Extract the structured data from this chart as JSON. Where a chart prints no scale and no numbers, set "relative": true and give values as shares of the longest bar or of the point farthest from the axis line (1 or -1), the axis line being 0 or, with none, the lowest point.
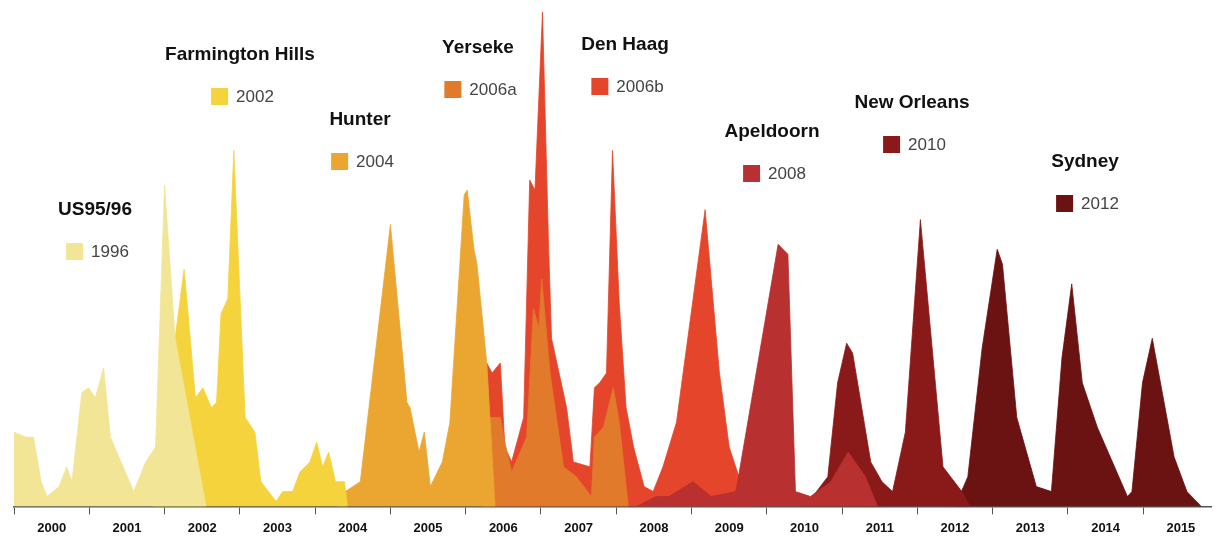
{
  "chart_data": {
    "type": "area",
    "relative": true,
    "legend": "top",
    "grid": false,
    "xlim": [
      2000,
      2015.9
    ],
    "xticks": [
      {
        "value": 2000,
        "label": null
      },
      {
        "value": 2000.5,
        "label": "2000"
      },
      {
        "value": 2001,
        "label": null
      },
      {
        "value": 2001.5,
        "label": "2001"
      },
      {
        "value": 2002,
        "label": null
      },
      {
        "value": 2002.5,
        "label": "2002"
      },
      {
        "value": 2003,
        "label": null
      },
      {
        "value": 2003.5,
        "label": "2003"
      },
      {
        "value": 2004,
        "label": null
      },
      {
        "value": 2004.5,
        "label": "2004"
      },
      {
        "value": 2005,
        "label": null
      },
      {
        "value": 2005.5,
        "label": "2005"
      },
      {
        "value": 2006,
        "label": null
      },
      {
        "value": 2006.5,
        "label": "2006"
      },
      {
        "value": 2007,
        "label": null
      },
      {
        "value": 2007.5,
        "label": "2007"
      },
      {
        "value": 2008,
        "label": null
      },
      {
        "value": 2008.5,
        "label": "2008"
      },
      {
        "value": 2009,
        "label": null
      },
      {
        "value": 2009.5,
        "label": "2009"
      },
      {
        "value": 2010,
        "label": null
      },
      {
        "value": 2010.5,
        "label": "2010"
      },
      {
        "value": 2011,
        "label": null
      },
      {
        "value": 2011.5,
        "label": "2011"
      },
      {
        "value": 2012,
        "label": null
      },
      {
        "value": 2012.5,
        "label": "2012"
      },
      {
        "value": 2013,
        "label": null
      },
      {
        "value": 2013.5,
        "label": "2013"
      },
      {
        "value": 2014,
        "label": null
      },
      {
        "value": 2014.5,
        "label": "2014"
      },
      {
        "value": 2015,
        "label": null
      },
      {
        "value": 2015.5,
        "label": "2015"
      }
    ],
    "series": [
      {
        "name": "1996",
        "color": "#f2e595",
        "x": [
          2000.0,
          2000.16,
          2000.26,
          2000.36,
          2000.44,
          2000.6,
          2000.7,
          2000.77,
          2000.9,
          2000.99,
          2001.08,
          2001.19,
          2001.28,
          2001.59,
          2001.75,
          2001.88,
          2002.0,
          2002.14,
          2002.55
        ],
        "values": [
          0.15,
          0.14,
          0.14,
          0.05,
          0.02,
          0.04,
          0.08,
          0.05,
          0.23,
          0.24,
          0.22,
          0.28,
          0.14,
          0.03,
          0.09,
          0.12,
          0.65,
          0.34,
          0
        ]
      },
      {
        "name": "2002",
        "color": "#f5d33d",
        "x": [
          2001.85,
          2002.14,
          2002.26,
          2002.41,
          2002.51,
          2002.62,
          2002.69,
          2002.75,
          2002.84,
          2002.92,
          2003.07,
          2003.2,
          2003.28,
          2003.48,
          2003.57,
          2003.7,
          2003.8,
          2003.93,
          2004.02,
          2004.1,
          2004.18,
          2004.27,
          2004.39,
          2004.43
        ],
        "values": [
          0,
          0.34,
          0.48,
          0.22,
          0.24,
          0.2,
          0.21,
          0.39,
          0.42,
          0.72,
          0.18,
          0.15,
          0.05,
          0.01,
          0.03,
          0.03,
          0.07,
          0.09,
          0.13,
          0.08,
          0.11,
          0.05,
          0.05,
          0
        ]
      },
      {
        "name": "2004",
        "color": "#eba632",
        "x": [
          2004.3,
          2004.4,
          2004.6,
          2005.0,
          2005.22,
          2005.26,
          2005.38,
          2005.45,
          2005.53,
          2005.69,
          2005.79,
          2005.98,
          2006.02,
          2006.11,
          2006.15,
          2006.28,
          2006.39
        ],
        "values": [
          0,
          0.03,
          0.05,
          0.57,
          0.21,
          0.2,
          0.11,
          0.15,
          0.04,
          0.09,
          0.17,
          0.63,
          0.64,
          0.52,
          0.49,
          0.29,
          0
        ]
      },
      {
        "name": "2006a",
        "color": "#e27a2b",
        "x": [
          2006.22,
          2006.32,
          2006.46,
          2006.52,
          2006.61,
          2006.81,
          2006.9,
          2006.97,
          2007.01,
          2007.12,
          2007.3,
          2007.47,
          2007.67,
          2007.71,
          2007.83,
          2007.96,
          2008.04,
          2008.16
        ],
        "values": [
          0,
          0.18,
          0.18,
          0.13,
          0.07,
          0.14,
          0.4,
          0.36,
          0.46,
          0.27,
          0.08,
          0.06,
          0.02,
          0.14,
          0.16,
          0.24,
          0.17,
          0
        ]
      },
      {
        "name": "2008",
        "color": "#b93030",
        "x": [
          2008.27,
          2008.53,
          2008.7,
          2009.02,
          2009.26,
          2009.59,
          2010.15,
          2010.28,
          2010.38,
          2010.58,
          2010.85,
          2011.08,
          2011.31,
          2011.47
        ],
        "values": [
          0,
          0.02,
          0.02,
          0.05,
          0.02,
          0.03,
          0.53,
          0.51,
          0.03,
          0.02,
          0.05,
          0.11,
          0.06,
          0
        ]
      },
      {
        "name": "2006b",
        "color": "#e5452a",
        "x": [
          2006.22,
          2006.28,
          2006.35,
          2006.46,
          2006.52,
          2006.61,
          2006.77,
          2006.85,
          2006.92,
          2007.02,
          2007.1,
          2007.14,
          2007.34,
          2007.43,
          2007.65,
          2007.71,
          2007.78,
          2007.87,
          2007.95,
          2008.04,
          2008.13,
          2008.23,
          2008.37,
          2008.49,
          2008.62,
          2008.8,
          2009.18,
          2009.37,
          2009.5,
          2009.63,
          2009.79
        ],
        "values": [
          0,
          0.29,
          0.27,
          0.29,
          0.12,
          0.09,
          0.18,
          0.66,
          0.64,
          1.0,
          0.53,
          0.34,
          0.2,
          0.09,
          0.08,
          0.24,
          0.25,
          0.27,
          0.72,
          0.41,
          0.2,
          0.12,
          0.04,
          0.03,
          0.08,
          0.17,
          0.6,
          0.27,
          0.12,
          0.06,
          0
        ]
      },
      {
        "name": "2010",
        "color": "#8a1a1a",
        "x": [
          2010.45,
          2010.61,
          2010.81,
          2010.94,
          2011.06,
          2011.14,
          2011.38,
          2011.53,
          2011.67,
          2011.84,
          2012.04,
          2012.34,
          2012.59,
          2012.7
        ],
        "values": [
          0,
          0.02,
          0.06,
          0.25,
          0.33,
          0.31,
          0.09,
          0.05,
          0.03,
          0.15,
          0.58,
          0.08,
          0.03,
          0
        ]
      },
      {
        "name": "2012",
        "color": "#6b1212",
        "x": [
          2012.5,
          2012.67,
          2012.86,
          2013.06,
          2013.13,
          2013.32,
          2013.58,
          2013.78,
          2013.92,
          2014.05,
          2014.19,
          2014.39,
          2014.79,
          2014.85,
          2014.99,
          2015.12,
          2015.41,
          2015.58,
          2015.77
        ],
        "values": [
          0,
          0.06,
          0.32,
          0.52,
          0.49,
          0.18,
          0.04,
          0.03,
          0.3,
          0.45,
          0.25,
          0.16,
          0.02,
          0.03,
          0.25,
          0.34,
          0.1,
          0.03,
          0
        ]
      }
    ],
    "annotations": [
      "US95/96",
      "Farmington Hills",
      "Hunter",
      "Yerseke",
      "Apeldoorn",
      "Den Haag",
      "New Orleans",
      "Sydney"
    ]
  }
}
